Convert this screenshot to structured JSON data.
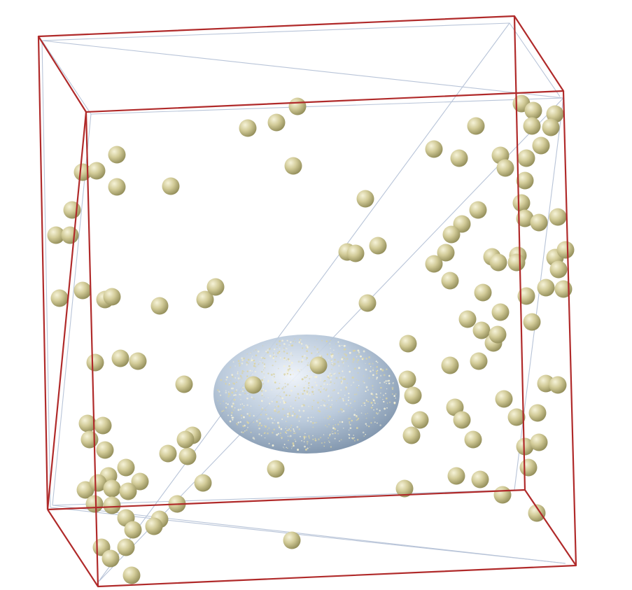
{
  "scene": {
    "description_visible_text": "",
    "colors": {
      "background": "#ffffff",
      "box_edge": "#b02a2a",
      "inner_line": "#b8c4d8",
      "sphere_light": "#f2efcf",
      "sphere_mid": "#cbc48f",
      "sphere_dark": "#8f8a55",
      "blob_light": "#e6eef8",
      "blob_mid": "#a9bdd3",
      "blob_dark": "#6f87a2"
    },
    "icon": "3d-simulation-scene"
  }
}
